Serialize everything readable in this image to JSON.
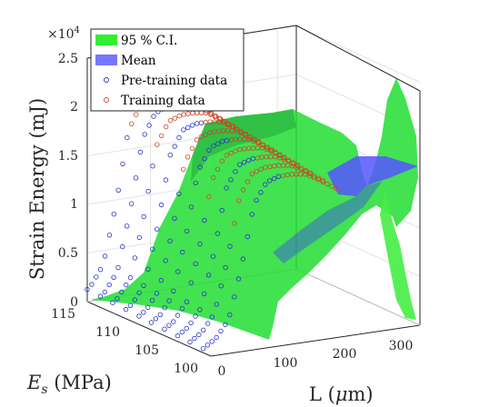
{
  "chart_data": {
    "type": "surface3d",
    "ylabel_var": "E",
    "ylabel_sub": "s",
    "ylabel_unit": " (MPa)",
    "xlabel_var": "L (",
    "xlabel_mu": "μ",
    "xlabel_unit": "m)",
    "zlabel": "Strain Energy (mJ)",
    "z_multiplier": "×10",
    "z_multiplier_exp": "4",
    "x_ticks": [
      "0",
      "100",
      "200",
      "300"
    ],
    "y_ticks": [
      "100",
      "105",
      "110",
      "115"
    ],
    "z_ticks": [
      "0",
      "0.5",
      "1",
      "1.5",
      "2",
      "2.5"
    ],
    "x_range": [
      0,
      330
    ],
    "y_range": [
      99,
      115
    ],
    "z_range": [
      0,
      2.5
    ],
    "legend": [
      {
        "label": "95 % C.I.",
        "color": "#33ee33",
        "kind": "patch"
      },
      {
        "label": "Mean",
        "color": "#7777ff",
        "kind": "patch"
      },
      {
        "label": "Pre-training data",
        "color": "#2233cc",
        "kind": "marker"
      },
      {
        "label": "Training data",
        "color": "#cc4422",
        "kind": "marker"
      }
    ],
    "legend_position": "top-left",
    "grid": true,
    "series_curve": {
      "L": [
        0,
        20,
        40,
        60,
        80,
        100,
        120,
        140,
        160,
        180,
        200,
        220,
        240,
        260,
        280,
        300,
        320
      ],
      "mean_energy_x1e4": [
        0.05,
        0.15,
        0.35,
        0.95,
        1.7,
        1.95,
        2.0,
        2.0,
        1.98,
        1.9,
        1.8,
        1.7,
        1.62,
        1.55,
        1.48,
        1.42,
        1.38
      ]
    },
    "data_slices_E": [
      100,
      101.7,
      103.3,
      105,
      106.7,
      108.3,
      110,
      111.7,
      113.3,
      115
    ],
    "pre_training_L_max": 120,
    "training_L_range": [
      60,
      210
    ]
  }
}
